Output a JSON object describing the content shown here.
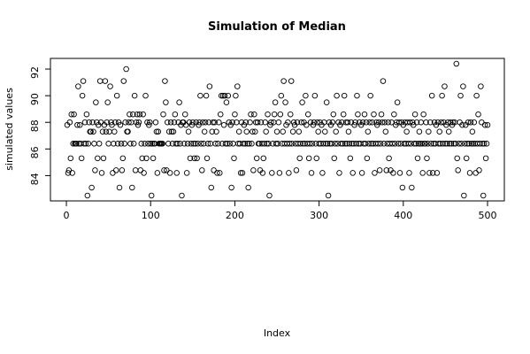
{
  "chart_data": {
    "type": "scatter",
    "title": "Simulation of Median",
    "x_label": "Index",
    "y_label": "simulated values",
    "xlim": [
      -18.96,
      519.96
    ],
    "xticks": [
      0,
      100,
      200,
      300,
      400,
      500
    ],
    "ylim": [
      82.1,
      92.8
    ],
    "yticks": [
      84,
      86,
      88,
      90,
      92
    ],
    "color": "#000000",
    "grid": false,
    "values": [
      87.8,
      84.2,
      84.4,
      88.0,
      85.3,
      88.6,
      84.2,
      86.4,
      88.6,
      86.4,
      86.4,
      86.4,
      87.8,
      90.7,
      86.4,
      87.8,
      86.4,
      85.3,
      90.0,
      91.1,
      86.4,
      88.0,
      86.4,
      88.6,
      82.5,
      86.4,
      88.0,
      87.3,
      87.3,
      83.1,
      88.0,
      87.3,
      86.4,
      84.4,
      89.5,
      88.0,
      85.3,
      87.8,
      86.4,
      91.1,
      88.0,
      84.2,
      87.3,
      85.3,
      87.8,
      91.1,
      87.3,
      88.0,
      89.5,
      86.4,
      87.3,
      90.7,
      88.0,
      87.8,
      84.2,
      86.4,
      87.3,
      88.0,
      84.4,
      90.0,
      86.4,
      88.0,
      83.1,
      87.8,
      86.4,
      84.4,
      85.3,
      91.1,
      86.4,
      88.0,
      92.0,
      87.3,
      87.3,
      88.0,
      88.6,
      86.4,
      88.0,
      83.1,
      88.6,
      86.4,
      90.0,
      84.4,
      88.0,
      88.6,
      87.8,
      88.0,
      88.6,
      84.4,
      86.4,
      85.3,
      88.6,
      84.2,
      86.4,
      90.0,
      85.3,
      88.0,
      86.4,
      87.8,
      88.0,
      86.4,
      82.5,
      86.4,
      85.3,
      86.4,
      86.4,
      88.0,
      87.3,
      84.2,
      87.3,
      86.4,
      86.4,
      86.4,
      86.4,
      86.4,
      88.6,
      84.4,
      91.1,
      89.5,
      84.4,
      88.0,
      86.4,
      87.3,
      84.2,
      88.0,
      87.3,
      86.4,
      87.3,
      88.0,
      88.6,
      86.4,
      84.2,
      86.4,
      88.0,
      89.5,
      86.4,
      87.8,
      82.5,
      88.0,
      88.0,
      86.4,
      88.6,
      87.8,
      84.2,
      86.4,
      87.3,
      88.0,
      85.3,
      86.4,
      87.8,
      88.0,
      86.4,
      85.3,
      86.4,
      88.0,
      85.3,
      86.4,
      87.8,
      88.0,
      90.0,
      86.4,
      84.4,
      88.0,
      86.4,
      87.3,
      88.0,
      90.0,
      85.3,
      86.4,
      88.0,
      90.7,
      86.4,
      83.1,
      87.3,
      88.0,
      84.4,
      88.0,
      86.4,
      87.3,
      84.2,
      86.4,
      88.0,
      84.2,
      88.6,
      90.0,
      86.4,
      90.0,
      87.8,
      90.0,
      86.4,
      89.5,
      86.4,
      90.0,
      88.0,
      86.4,
      87.8,
      83.1,
      88.0,
      86.4,
      85.3,
      88.6,
      90.0,
      88.0,
      90.7,
      86.4,
      87.3,
      86.4,
      84.2,
      88.0,
      84.2,
      86.4,
      87.8,
      86.4,
      88.0,
      87.3,
      86.4,
      83.1,
      86.4,
      88.0,
      88.6,
      86.4,
      87.3,
      84.4,
      88.6,
      87.3,
      88.0,
      85.3,
      88.0,
      86.4,
      86.4,
      84.4,
      88.0,
      86.4,
      84.2,
      85.3,
      86.4,
      88.0,
      87.3,
      86.4,
      88.6,
      86.4,
      82.5,
      87.8,
      88.0,
      84.2,
      86.4,
      88.0,
      88.6,
      89.5,
      86.4,
      87.3,
      86.4,
      88.0,
      84.2,
      88.6,
      90.0,
      86.4,
      87.3,
      91.1,
      86.4,
      89.5,
      87.8,
      86.4,
      88.0,
      84.2,
      86.4,
      88.6,
      91.1,
      86.4,
      87.3,
      88.0,
      87.8,
      86.4,
      84.4,
      88.0,
      86.4,
      87.3,
      85.3,
      86.4,
      88.0,
      89.5,
      86.4,
      88.0,
      86.4,
      90.0,
      87.8,
      86.4,
      88.6,
      85.3,
      86.4,
      88.0,
      84.2,
      86.4,
      87.8,
      88.0,
      90.0,
      86.4,
      85.3,
      88.0,
      87.3,
      86.4,
      88.0,
      86.4,
      87.8,
      84.2,
      86.4,
      88.0,
      87.3,
      86.4,
      89.5,
      86.4,
      82.5,
      88.0,
      86.4,
      87.8,
      86.4,
      88.0,
      88.6,
      85.3,
      86.4,
      87.3,
      90.0,
      86.4,
      88.0,
      84.2,
      87.8,
      86.4,
      88.0,
      86.4,
      88.6,
      90.0,
      86.4,
      88.0,
      86.4,
      88.0,
      87.3,
      86.4,
      85.3,
      88.0,
      86.4,
      84.2,
      86.4,
      87.8,
      88.0,
      86.4,
      90.0,
      88.6,
      86.4,
      88.0,
      86.4,
      87.8,
      84.2,
      88.0,
      86.4,
      88.6,
      86.4,
      88.0,
      85.3,
      87.3,
      86.4,
      88.0,
      90.0,
      86.4,
      88.0,
      86.4,
      88.6,
      84.2,
      86.4,
      88.0,
      87.8,
      86.4,
      88.0,
      84.4,
      86.4,
      88.6,
      88.0,
      91.1,
      86.4,
      88.0,
      87.3,
      84.4,
      86.4,
      88.0,
      85.3,
      86.4,
      84.4,
      88.0,
      86.4,
      84.2,
      88.6,
      86.4,
      87.8,
      88.0,
      89.5,
      86.4,
      88.0,
      84.2,
      86.4,
      88.0,
      83.1,
      87.8,
      86.4,
      88.0,
      86.4,
      87.3,
      88.0,
      86.4,
      84.2,
      88.0,
      86.4,
      83.1,
      88.0,
      87.8,
      86.4,
      88.6,
      86.4,
      88.0,
      85.3,
      86.4,
      87.3,
      86.4,
      88.0,
      86.4,
      84.2,
      88.6,
      86.4,
      86.4,
      88.0,
      85.3,
      86.4,
      87.3,
      84.2,
      88.0,
      86.4,
      90.0,
      84.2,
      86.4,
      88.0,
      86.4,
      87.8,
      84.2,
      88.0,
      86.4,
      87.3,
      86.4,
      88.0,
      90.0,
      86.4,
      88.0,
      90.7,
      86.4,
      87.8,
      86.4,
      88.0,
      87.3,
      86.4,
      88.0,
      86.4,
      87.8,
      88.0,
      86.4,
      88.0,
      86.4,
      92.4,
      85.3,
      84.4,
      86.4,
      88.0,
      90.0,
      86.4,
      87.8,
      90.7,
      82.5,
      86.4,
      87.8,
      85.3,
      86.4,
      88.0,
      86.4,
      84.2,
      88.0,
      86.4,
      87.3,
      86.4,
      88.0,
      86.4,
      84.2,
      90.0,
      86.4,
      88.6,
      84.4,
      86.4,
      90.7,
      88.0,
      86.4,
      82.5,
      86.4,
      87.8,
      85.3,
      86.4,
      87.8
    ]
  }
}
